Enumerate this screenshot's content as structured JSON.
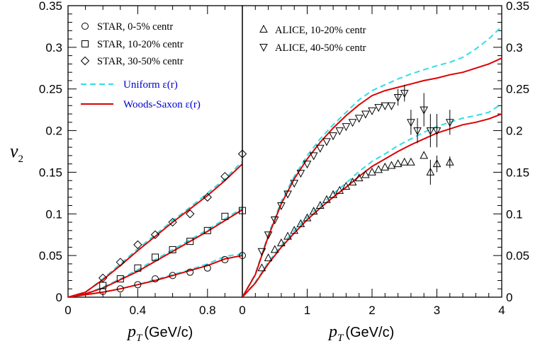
{
  "chart_data": [
    {
      "type": "line",
      "panel": "left",
      "xlabel": "p",
      "xlabel_sub": "T",
      "xlabel_unit": "(GeV/c)",
      "ylabel": "v",
      "ylabel_sub": "2",
      "xlim": [
        0,
        1.0
      ],
      "ylim": [
        0,
        0.35
      ],
      "xticks": [
        0,
        0.4,
        0.8
      ],
      "xtick_labels": [
        "0",
        "0.4",
        "0.8"
      ],
      "yticks": [
        0,
        0.05,
        0.1,
        0.15,
        0.2,
        0.25,
        0.3,
        0.35
      ],
      "ytick_labels": [
        "0",
        "0.05",
        "0.1",
        "0.15",
        "0.2",
        "0.25",
        "0.3",
        "0.35"
      ],
      "legend_position": "top-left",
      "series": [
        {
          "name": "STAR, 0-5% centr",
          "kind": "scatter",
          "marker": "circle",
          "x": [
            0.2,
            0.3,
            0.4,
            0.5,
            0.6,
            0.7,
            0.8,
            0.9,
            1.0
          ],
          "y": [
            0.007,
            0.01,
            0.015,
            0.022,
            0.026,
            0.03,
            0.035,
            0.045,
            0.05
          ]
        },
        {
          "name": "STAR, 10-20% centr",
          "kind": "scatter",
          "marker": "square",
          "x": [
            0.2,
            0.3,
            0.4,
            0.5,
            0.6,
            0.7,
            0.8,
            0.9,
            1.0
          ],
          "y": [
            0.014,
            0.022,
            0.035,
            0.048,
            0.057,
            0.067,
            0.08,
            0.097,
            0.104
          ]
        },
        {
          "name": "STAR, 30-50% centr",
          "kind": "scatter",
          "marker": "diamond",
          "x": [
            0.2,
            0.3,
            0.4,
            0.5,
            0.6,
            0.7,
            0.8,
            0.9,
            1.0
          ],
          "y": [
            0.023,
            0.042,
            0.063,
            0.075,
            0.09,
            0.1,
            0.12,
            0.145,
            0.172
          ]
        },
        {
          "name": "Uniform ε(r)",
          "kind": "line",
          "color": "#33dde6",
          "dash": "dashed",
          "curves": [
            {
              "x": [
                0,
                0.1,
                0.2,
                0.3,
                0.4,
                0.5,
                0.6,
                0.7,
                0.8,
                0.9,
                1.0,
                1.04
              ],
              "y": [
                0,
                0.003,
                0.006,
                0.01,
                0.015,
                0.021,
                0.027,
                0.033,
                0.04,
                0.049,
                0.052,
                0.06
              ]
            },
            {
              "x": [
                0,
                0.1,
                0.2,
                0.3,
                0.4,
                0.5,
                0.6,
                0.7,
                0.8,
                0.9,
                1.0,
                1.04
              ],
              "y": [
                0,
                0.004,
                0.012,
                0.022,
                0.033,
                0.045,
                0.057,
                0.069,
                0.081,
                0.094,
                0.107,
                0.123
              ]
            },
            {
              "x": [
                0,
                0.1,
                0.2,
                0.3,
                0.4,
                0.5,
                0.6,
                0.7,
                0.8,
                0.9,
                1.0,
                1.04
              ],
              "y": [
                0,
                0.006,
                0.022,
                0.04,
                0.058,
                0.075,
                0.092,
                0.108,
                0.125,
                0.142,
                0.163,
                0.188
              ]
            }
          ]
        },
        {
          "name": "Woods-Saxon ε(r)",
          "kind": "line",
          "color": "#dd0000",
          "dash": "solid",
          "curves": [
            {
              "x": [
                0,
                0.1,
                0.2,
                0.3,
                0.4,
                0.5,
                0.6,
                0.7,
                0.8,
                0.9,
                1.0,
                1.04
              ],
              "y": [
                0,
                0.003,
                0.006,
                0.01,
                0.015,
                0.02,
                0.026,
                0.032,
                0.038,
                0.046,
                0.05,
                0.058
              ]
            },
            {
              "x": [
                0,
                0.1,
                0.2,
                0.3,
                0.4,
                0.5,
                0.6,
                0.7,
                0.8,
                0.9,
                1.0,
                1.04
              ],
              "y": [
                0,
                0.004,
                0.011,
                0.021,
                0.031,
                0.043,
                0.055,
                0.067,
                0.079,
                0.092,
                0.105,
                0.12
              ]
            },
            {
              "x": [
                0,
                0.1,
                0.2,
                0.3,
                0.4,
                0.5,
                0.6,
                0.7,
                0.8,
                0.9,
                1.0,
                1.04
              ],
              "y": [
                0,
                0.006,
                0.021,
                0.038,
                0.056,
                0.073,
                0.09,
                0.106,
                0.122,
                0.14,
                0.16,
                0.185
              ]
            }
          ]
        }
      ]
    },
    {
      "type": "line",
      "panel": "right",
      "xlabel": "p",
      "xlabel_sub": "T",
      "xlabel_unit": "(GeV/c)",
      "xlim": [
        0,
        4
      ],
      "ylim": [
        0,
        0.35
      ],
      "xticks": [
        0,
        1,
        2,
        3,
        4
      ],
      "xtick_labels": [
        "0",
        "1",
        "2",
        "3",
        "4"
      ],
      "yticks": [
        0,
        0.05,
        0.1,
        0.15,
        0.2,
        0.25,
        0.3,
        0.35
      ],
      "ytick_labels": [
        "0",
        "0.05",
        "0.1",
        "0.15",
        "0.2",
        "0.25",
        "0.3",
        "0.35"
      ],
      "legend_position": "top-left",
      "series": [
        {
          "name": "ALICE, 10-20% centr",
          "kind": "scatter",
          "marker": "triangle-up",
          "x": [
            0.3,
            0.4,
            0.5,
            0.6,
            0.7,
            0.8,
            0.9,
            1.0,
            1.1,
            1.2,
            1.3,
            1.4,
            1.5,
            1.6,
            1.7,
            1.8,
            1.9,
            2.0,
            2.1,
            2.2,
            2.3,
            2.4,
            2.5,
            2.6,
            2.8,
            2.9,
            3.0,
            3.2
          ],
          "y": [
            0.035,
            0.047,
            0.057,
            0.065,
            0.073,
            0.08,
            0.088,
            0.095,
            0.103,
            0.11,
            0.117,
            0.123,
            0.128,
            0.133,
            0.138,
            0.143,
            0.147,
            0.15,
            0.153,
            0.156,
            0.158,
            0.16,
            0.162,
            0.162,
            0.17,
            0.15,
            0.16,
            0.162
          ],
          "err": [
            0,
            0,
            0,
            0,
            0,
            0,
            0,
            0,
            0,
            0,
            0,
            0,
            0,
            0,
            0,
            0,
            0,
            0,
            0,
            0,
            0,
            0,
            0,
            0,
            0,
            0.015,
            0.01,
            0.007
          ]
        },
        {
          "name": "ALICE, 40-50% centr",
          "kind": "scatter",
          "marker": "triangle-down",
          "x": [
            0.3,
            0.4,
            0.5,
            0.6,
            0.7,
            0.8,
            0.9,
            1.0,
            1.1,
            1.2,
            1.3,
            1.4,
            1.5,
            1.6,
            1.7,
            1.8,
            1.9,
            2.0,
            2.1,
            2.2,
            2.3,
            2.4,
            2.5,
            2.6,
            2.7,
            2.8,
            2.9,
            3.0,
            3.2
          ],
          "y": [
            0.055,
            0.075,
            0.093,
            0.11,
            0.124,
            0.137,
            0.149,
            0.16,
            0.17,
            0.179,
            0.187,
            0.194,
            0.2,
            0.205,
            0.21,
            0.215,
            0.22,
            0.224,
            0.228,
            0.23,
            0.23,
            0.24,
            0.245,
            0.21,
            0.2,
            0.225,
            0.2,
            0.2,
            0.21
          ],
          "err": [
            0,
            0,
            0,
            0,
            0,
            0,
            0,
            0,
            0,
            0,
            0,
            0,
            0,
            0,
            0,
            0,
            0,
            0,
            0,
            0,
            0,
            0.01,
            0.01,
            0.015,
            0.015,
            0.02,
            0.02,
            0.02,
            0.015
          ]
        },
        {
          "name": "Uniform ε(r)",
          "kind": "line",
          "color": "#33dde6",
          "dash": "dashed",
          "curves": [
            {
              "x": [
                0,
                0.2,
                0.4,
                0.6,
                0.8,
                1.0,
                1.2,
                1.4,
                1.6,
                1.8,
                2.0,
                2.2,
                2.4,
                2.6,
                2.8,
                3.0,
                3.2,
                3.4,
                3.6,
                3.8,
                4.0
              ],
              "y": [
                0,
                0.018,
                0.042,
                0.062,
                0.08,
                0.096,
                0.11,
                0.124,
                0.137,
                0.151,
                0.163,
                0.172,
                0.182,
                0.19,
                0.198,
                0.205,
                0.21,
                0.215,
                0.218,
                0.222,
                0.232
              ]
            },
            {
              "x": [
                0,
                0.2,
                0.4,
                0.6,
                0.8,
                1.0,
                1.2,
                1.4,
                1.6,
                1.8,
                2.0,
                2.2,
                2.4,
                2.6,
                2.8,
                3.0,
                3.2,
                3.4,
                3.6,
                3.8,
                4.0
              ],
              "y": [
                0,
                0.028,
                0.075,
                0.115,
                0.145,
                0.17,
                0.19,
                0.207,
                0.222,
                0.237,
                0.248,
                0.255,
                0.262,
                0.268,
                0.273,
                0.278,
                0.282,
                0.288,
                0.298,
                0.31,
                0.325
              ]
            }
          ]
        },
        {
          "name": "Woods-Saxon ε(r)",
          "kind": "line",
          "color": "#dd0000",
          "dash": "solid",
          "curves": [
            {
              "x": [
                0,
                0.2,
                0.4,
                0.6,
                0.8,
                1.0,
                1.2,
                1.4,
                1.6,
                1.8,
                2.0,
                2.2,
                2.4,
                2.6,
                2.8,
                3.0,
                3.2,
                3.4,
                3.6,
                3.8,
                4.0
              ],
              "y": [
                0,
                0.017,
                0.04,
                0.06,
                0.077,
                0.093,
                0.107,
                0.12,
                0.132,
                0.145,
                0.157,
                0.166,
                0.175,
                0.183,
                0.19,
                0.197,
                0.202,
                0.207,
                0.21,
                0.214,
                0.22
              ]
            },
            {
              "x": [
                0,
                0.2,
                0.4,
                0.6,
                0.8,
                1.0,
                1.2,
                1.4,
                1.6,
                1.8,
                2.0,
                2.2,
                2.4,
                2.6,
                2.8,
                3.0,
                3.2,
                3.4,
                3.6,
                3.8,
                4.0
              ],
              "y": [
                0,
                0.027,
                0.073,
                0.112,
                0.142,
                0.166,
                0.186,
                0.203,
                0.218,
                0.231,
                0.242,
                0.248,
                0.252,
                0.256,
                0.26,
                0.263,
                0.267,
                0.27,
                0.275,
                0.28,
                0.287
              ]
            }
          ]
        }
      ]
    }
  ],
  "legend": {
    "left": [
      {
        "label": "STAR, 0-5% centr",
        "marker": "circle"
      },
      {
        "label": "STAR, 10-20% centr",
        "marker": "square"
      },
      {
        "label": "STAR, 30-50% centr",
        "marker": "diamond"
      },
      {
        "label": "Uniform ε(r)",
        "line": "dashed",
        "color": "#33dde6"
      },
      {
        "label": "Woods-Saxon ε(r)",
        "line": "solid",
        "color": "#dd0000"
      }
    ],
    "right": [
      {
        "label": "ALICE, 10-20% centr",
        "marker": "triangle-up"
      },
      {
        "label": "ALICE, 40-50% centr",
        "marker": "triangle-down"
      }
    ]
  }
}
